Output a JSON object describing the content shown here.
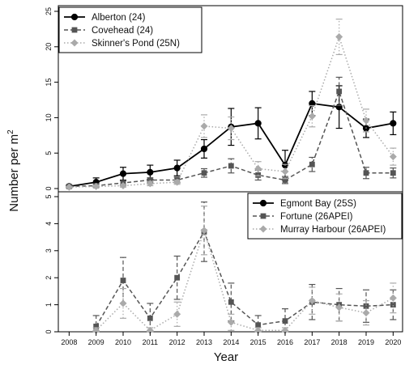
{
  "chart_data": {
    "type": "line",
    "xlabel": "Year",
    "ylabel": "Number per m",
    "ylabel_superscript": "2",
    "years": [
      "2008",
      "2009",
      "2010",
      "2011",
      "2012",
      "2013",
      "2014",
      "2015",
      "2016",
      "2017",
      "2018",
      "2019",
      "2020"
    ],
    "panels": [
      {
        "ylim": [
          0,
          25
        ],
        "yticks": [
          "0",
          "5",
          "10",
          "15",
          "20",
          "25"
        ],
        "legend_position": "top-left",
        "series": [
          {
            "name": "Alberton (24)",
            "color": "#000000",
            "line": "solid",
            "marker": "circle",
            "x": [
              2008,
              2009,
              2010,
              2011,
              2012,
              2013,
              2014,
              2015,
              2016,
              2017,
              2018,
              2019,
              2020
            ],
            "y": [
              0.3,
              0.9,
              2.1,
              2.3,
              2.9,
              5.6,
              8.7,
              9.2,
              3.3,
              12.0,
              11.5,
              8.5,
              9.2
            ],
            "err": [
              0.2,
              0.6,
              0.9,
              1.0,
              1.1,
              1.3,
              2.6,
              2.2,
              2.1,
              1.7,
              3.0,
              1.3,
              1.6
            ]
          },
          {
            "name": "Covehead (24)",
            "color": "#555555",
            "line": "dashed",
            "marker": "square",
            "x": [
              2008,
              2009,
              2010,
              2011,
              2012,
              2013,
              2014,
              2015,
              2016,
              2017,
              2018,
              2019,
              2020
            ],
            "y": [
              0.3,
              0.4,
              0.8,
              1.2,
              1.2,
              2.2,
              3.2,
              1.9,
              1.2,
              3.4,
              13.7,
              2.2,
              2.2
            ],
            "err": [
              0.2,
              0.2,
              0.3,
              0.3,
              0.4,
              0.6,
              1.0,
              0.7,
              0.5,
              1.0,
              2.0,
              0.8,
              0.7
            ]
          },
          {
            "name": "Skinner's Pond (25N)",
            "color": "#aaaaaa",
            "line": "dotted",
            "marker": "diamond",
            "x": [
              2008,
              2009,
              2010,
              2011,
              2012,
              2013,
              2014,
              2015,
              2016,
              2017,
              2018,
              2019,
              2020
            ],
            "y": [
              0.2,
              0.3,
              0.4,
              0.7,
              0.9,
              8.8,
              8.5,
              2.8,
              2.4,
              10.2,
              21.4,
              9.6,
              4.5
            ],
            "err": [
              0.1,
              0.2,
              0.2,
              0.3,
              0.3,
              1.6,
              1.6,
              1.0,
              1.0,
              1.5,
              2.5,
              1.6,
              1.2
            ]
          }
        ]
      },
      {
        "ylim": [
          0,
          5
        ],
        "yticks": [
          "0",
          "1",
          "2",
          "3",
          "4",
          "5"
        ],
        "legend_position": "top-right",
        "series": [
          {
            "name": "Egmont Bay (25S)",
            "color": "#000000",
            "line": "solid",
            "marker": "circle",
            "x": [],
            "y": [],
            "err": []
          },
          {
            "name": "Fortune (26APEI)",
            "color": "#555555",
            "line": "dashed",
            "marker": "square",
            "x": [
              2009,
              2010,
              2011,
              2012,
              2013,
              2014,
              2015,
              2016,
              2017,
              2018,
              2019,
              2020
            ],
            "y": [
              0.2,
              1.9,
              0.5,
              2.0,
              3.7,
              1.1,
              0.25,
              0.4,
              1.1,
              1.0,
              0.95,
              1.0
            ],
            "err": [
              0.4,
              0.85,
              0.55,
              0.8,
              1.1,
              0.7,
              0.35,
              0.45,
              0.65,
              0.6,
              0.6,
              0.55
            ]
          },
          {
            "name": "Murray Harbour (26APEI)",
            "color": "#aaaaaa",
            "line": "dotted",
            "marker": "diamond",
            "x": [
              2009,
              2010,
              2011,
              2012,
              2013,
              2014,
              2015,
              2016,
              2017,
              2018,
              2019,
              2020
            ],
            "y": [
              0.05,
              1.05,
              0.05,
              0.65,
              3.75,
              0.35,
              0.05,
              0.05,
              1.15,
              0.9,
              0.7,
              1.25
            ],
            "err": [
              0.1,
              0.55,
              0.1,
              0.45,
              0.9,
              0.3,
              0.1,
              0.1,
              0.5,
              0.5,
              0.45,
              0.55
            ]
          }
        ]
      }
    ]
  }
}
